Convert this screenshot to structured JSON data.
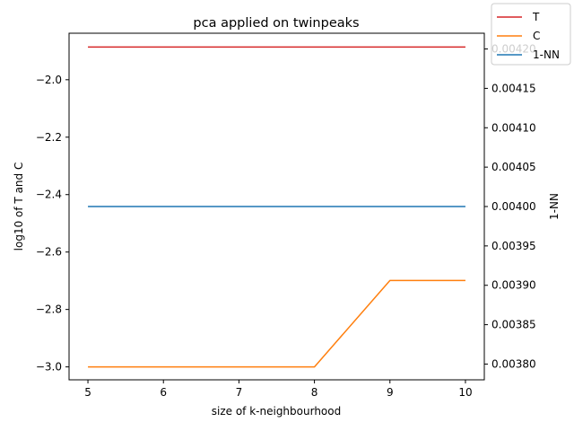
{
  "chart_data": {
    "type": "line",
    "title": "pca applied on twinpeaks",
    "xlabel": "size of k-neighbourhood",
    "ylabel_left": "log10 of T and C",
    "ylabel_right": "1-NN",
    "x": [
      5,
      6,
      7,
      8,
      9,
      10
    ],
    "xlim": [
      4.75,
      10.25
    ],
    "x_ticks": [
      5,
      6,
      7,
      8,
      9,
      10
    ],
    "ylim_left": [
      -3.045,
      -1.838
    ],
    "y_ticks_left": [
      -3.0,
      -2.8,
      -2.6,
      -2.4,
      -2.2,
      -2.0
    ],
    "y_tick_labels_left": [
      "−3.0",
      "−2.8",
      "−2.6",
      "−2.4",
      "−2.2",
      "−2.0"
    ],
    "ylim_right": [
      0.00378,
      0.00422
    ],
    "y_ticks_right": [
      0.0038,
      0.00385,
      0.0039,
      0.00395,
      0.004,
      0.00405,
      0.0041,
      0.00415,
      0.0042
    ],
    "y_tick_labels_right": [
      "0.00380",
      "0.00385",
      "0.00390",
      "0.00395",
      "0.00400",
      "0.00405",
      "0.00410",
      "0.00415",
      "0.00420"
    ],
    "series": [
      {
        "name": "T",
        "axis": "left",
        "color": "#d62728",
        "values": [
          -1.886,
          -1.886,
          -1.886,
          -1.886,
          -1.886,
          -1.886
        ]
      },
      {
        "name": "C",
        "axis": "left",
        "color": "#ff7f0e",
        "values": [
          -3.0,
          -3.0,
          -3.0,
          -3.0,
          -2.699,
          -2.699
        ]
      },
      {
        "name": "1-NN",
        "axis": "right",
        "color": "#1f77b4",
        "values": [
          0.004,
          0.004,
          0.004,
          0.004,
          0.004,
          0.004
        ]
      }
    ],
    "legend_position": "top-right",
    "grid": false
  }
}
